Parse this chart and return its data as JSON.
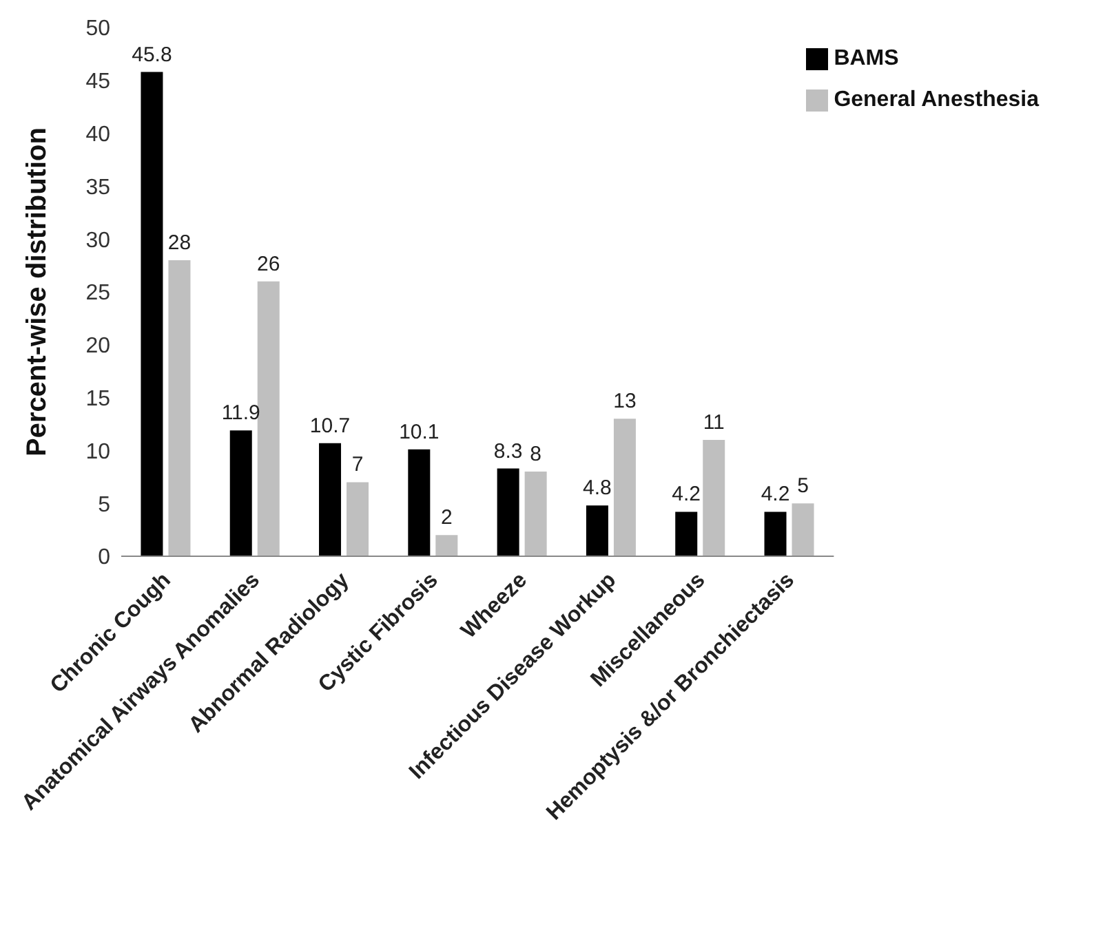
{
  "chart_data": {
    "type": "bar",
    "ylabel": "Percent-wise distribution",
    "categories": [
      "Chronic Cough",
      "Anatomical Airways Anomalies",
      "Abnormal Radiology",
      "Cystic Fibrosis",
      "Wheeze",
      "Infectious Disease Workup",
      "Miscellaneous",
      "Hemoptysis &/or Bronchiectasis"
    ],
    "series": [
      {
        "name": "BAMS",
        "color": "#000000",
        "values": [
          45.8,
          11.9,
          10.7,
          10.1,
          8.3,
          4.8,
          4.2,
          4.2
        ]
      },
      {
        "name": "General Anesthesia",
        "color": "#bfbfbf",
        "values": [
          28,
          26,
          7,
          2,
          8,
          13,
          11,
          5
        ]
      }
    ],
    "ylim": [
      0,
      50
    ],
    "yticks": [
      0,
      5,
      10,
      15,
      20,
      25,
      30,
      35,
      40,
      45,
      50
    ],
    "data_labels": true,
    "legend": "top right",
    "grid": false
  }
}
